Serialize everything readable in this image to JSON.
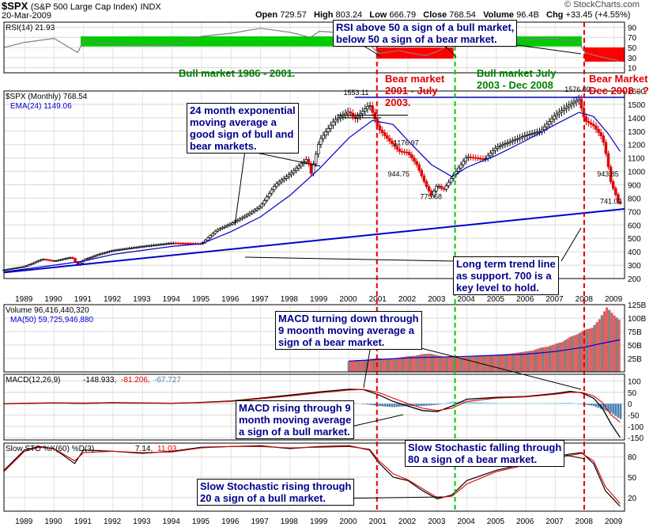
{
  "header": {
    "symbol": "$SPX",
    "name": "(S&P 500 Large Cap Index)",
    "exchange": "INDX",
    "date": "20-Mar-2009",
    "open_label": "Open",
    "open": "729.57",
    "high_label": "High",
    "high": "803.24",
    "low_label": "Low",
    "low": "666.79",
    "close_label": "Close",
    "close": "768.54",
    "volume_label": "Volume",
    "volume": "96.4B",
    "chg_label": "Chg",
    "chg": "+33.45 (+4.55%)",
    "watermark": "© StockCharts.com"
  },
  "annotations": {
    "rsi_note": "RSI above 50 a sign of a bull market,\nbelow 50 a sign of a bear market.",
    "bull_1986": "Bull market 1986 - 2001.",
    "bear_2001": "Bear market\n2001 - July\n2003.",
    "bull_2003": "Bull market July\n2003 - Dec 2008",
    "bear_2008": "Bear Market\nDec 2008 - ?",
    "ema_note": "24 month exponential\nmoving average a\ngood sign of bull and\nbear markets.",
    "trend_note": "Long term trend line\nas support. 700 is a\nkey level to hold.",
    "macd_down_note": "MACD turning down through\n9 moonth moving average a\nsign of a bear market.",
    "macd_up_note": "MACD rising through 9\nmonth moving average\na sign of a bull market.",
    "sto_down_note": "Slow Stochastic falling through\n80 a sign of a bear market.",
    "sto_up_note": "Slow Stochastic rising through\n20 a sign of a bull market."
  },
  "chart_data": [
    {
      "panel": "rsi",
      "type": "line",
      "legend": "RSI(14) 21.93",
      "ylim": [
        0,
        100
      ],
      "yticks": [
        "90",
        "70",
        "50",
        "30",
        "10"
      ],
      "ytick_values": [
        90,
        70,
        50,
        30,
        10
      ],
      "last_value": 21.93,
      "x": [
        1988.3,
        1989,
        1990,
        1990.8,
        1991,
        1992,
        1993,
        1994,
        1995,
        1996,
        1997,
        1998,
        1998.7,
        1999,
        2000,
        2000.6,
        2001,
        2001.7,
        2002,
        2002.6,
        2003,
        2003.6,
        2004,
        2005,
        2006,
        2007,
        2007.8,
        2008,
        2008.5,
        2009,
        2009.2
      ],
      "y": [
        50,
        60,
        68,
        40,
        63,
        58,
        55,
        56,
        72,
        78,
        88,
        80,
        70,
        82,
        78,
        64,
        38,
        44,
        40,
        34,
        42,
        62,
        66,
        62,
        65,
        68,
        60,
        40,
        32,
        26,
        22
      ],
      "color": "#808080",
      "fill_bull": "#00cc00",
      "fill_bear": "#ff0000"
    },
    {
      "panel": "price",
      "type": "candlestick",
      "legend": [
        "$SPX (Monthly) 768.54",
        "EMA(24) 1149.06"
      ],
      "ylim": [
        200,
        1600
      ],
      "yticks": [
        "1600",
        "1500",
        "1400",
        "1300",
        "1200",
        "1100",
        "1000",
        "900",
        "800",
        "700",
        "600",
        "500",
        "400",
        "300",
        "200"
      ],
      "ytick_values": [
        1600,
        1500,
        1400,
        1300,
        1200,
        1100,
        1000,
        900,
        800,
        700,
        600,
        500,
        400,
        300,
        200
      ],
      "x_tick_labels": [
        "1989",
        "1990",
        "1991",
        "1992",
        "1993",
        "1994",
        "1995",
        "1996",
        "1997",
        "1998",
        "1999",
        "2000",
        "2001",
        "2002",
        "2003",
        "2004",
        "2005",
        "2006",
        "2007",
        "2008",
        "2009"
      ],
      "x_tick_values": [
        1989,
        1990,
        1991,
        1992,
        1993,
        1994,
        1995,
        1996,
        1997,
        1998,
        1999,
        2000,
        2001,
        2002,
        2003,
        2004,
        2005,
        2006,
        2007,
        2008,
        2009
      ],
      "xlim": [
        1988.3,
        2009.35
      ],
      "price_x": [
        1988.3,
        1989,
        1989.6,
        1990,
        1990.6,
        1990.8,
        1991,
        1991.5,
        1992,
        1993,
        1994,
        1995,
        1995.5,
        1996,
        1996.5,
        1997,
        1997.5,
        1998,
        1998.6,
        1998.7,
        1999,
        1999.5,
        2000,
        2000.2,
        2000.7,
        2001,
        2001.7,
        2002,
        2002.3,
        2002.6,
        2002.8,
        2003,
        2003.2,
        2003.6,
        2004,
        2004.6,
        2005,
        2006,
        2006.5,
        2007,
        2007.5,
        2007.8,
        2008,
        2008.3,
        2008.6,
        2008.75,
        2008.9,
        2009,
        2009.15,
        2009.22
      ],
      "price_y": [
        265,
        290,
        345,
        330,
        360,
        300,
        340,
        380,
        410,
        440,
        465,
        460,
        560,
        610,
        670,
        740,
        900,
        980,
        1100,
        970,
        1230,
        1380,
        1450,
        1390,
        1500,
        1320,
        1150,
        1140,
        1050,
        900,
        820,
        900,
        860,
        990,
        1110,
        1090,
        1180,
        1270,
        1300,
        1420,
        1500,
        1540,
        1380,
        1340,
        1250,
        1100,
        900,
        860,
        760,
        768
      ],
      "ema_x": [
        1988.3,
        1990,
        1991,
        1992,
        1993,
        1994,
        1995,
        1996,
        1997,
        1998,
        1999,
        2000,
        2000.8,
        2001.5,
        2002,
        2002.8,
        2003.5,
        2004,
        2005,
        2006,
        2007,
        2007.8,
        2008.3,
        2008.8,
        2009.2
      ],
      "ema_y": [
        250,
        300,
        330,
        380,
        410,
        440,
        460,
        550,
        660,
        820,
        1020,
        1250,
        1380,
        1350,
        1230,
        1050,
        960,
        1030,
        1120,
        1230,
        1350,
        1440,
        1410,
        1280,
        1149
      ],
      "trend_line": {
        "x": [
          1988.3,
          2009.35
        ],
        "y": [
          245,
          720
        ]
      },
      "peak_line": {
        "x": [
          2000.2,
          2009.35
        ],
        "y": [
          1553,
          1553
        ]
      },
      "value_labels": [
        {
          "text": "1553.11",
          "x": 2000.3,
          "y": 1553.11
        },
        {
          "text": "1176.97",
          "x": 2002.0,
          "y": 1176.97
        },
        {
          "text": "944.75",
          "x": 2001.8,
          "y": 944.75
        },
        {
          "text": "775.68",
          "x": 2002.9,
          "y": 775.68
        },
        {
          "text": "1576.09",
          "x": 2007.8,
          "y": 1576.09
        },
        {
          "text": "943.85",
          "x": 2008.9,
          "y": 943.85
        },
        {
          "text": "741.02",
          "x": 2009.0,
          "y": 741.02
        }
      ],
      "vlines_bear": [
        2000.95,
        2007.98
      ],
      "vline_bull": 2003.6
    },
    {
      "panel": "volume",
      "type": "bar",
      "legend": [
        "Volume 96,416,440,320",
        "MA(50) 59,725,946,880"
      ],
      "ylim": [
        0,
        125
      ],
      "yticks": [
        "125B",
        "100B",
        "75B",
        "50B",
        "25B"
      ],
      "ytick_values": [
        125,
        100,
        75,
        50,
        25
      ],
      "x": [
        2000.0,
        2000.25,
        2000.5,
        2000.75,
        2001.0,
        2001.25,
        2001.5,
        2001.75,
        2002.0,
        2002.25,
        2002.5,
        2002.75,
        2003.0,
        2003.25,
        2003.5,
        2003.75,
        2004.0,
        2004.25,
        2004.5,
        2004.75,
        2005.0,
        2005.25,
        2005.5,
        2005.75,
        2006.0,
        2006.25,
        2006.5,
        2006.75,
        2007.0,
        2007.25,
        2007.5,
        2007.75,
        2008.0,
        2008.25,
        2008.5,
        2008.75,
        2009.0,
        2009.2
      ],
      "values": [
        20,
        22,
        21,
        24,
        26,
        23,
        25,
        27,
        29,
        30,
        33,
        34,
        31,
        28,
        30,
        27,
        28,
        29,
        30,
        31,
        32,
        33,
        34,
        36,
        38,
        40,
        45,
        47,
        52,
        56,
        65,
        70,
        78,
        82,
        98,
        120,
        105,
        96
      ],
      "ma_x": [
        2000.0,
        2002.0,
        2004.0,
        2006.0,
        2007.0,
        2008.0,
        2008.5,
        2009.2
      ],
      "ma_y": [
        20,
        26,
        29,
        33,
        38,
        46,
        52,
        59.7
      ]
    },
    {
      "panel": "macd",
      "type": "line",
      "legend": {
        "label": "MACD(12,26,9)",
        "macd": "-148.933",
        "signal": "-81.206",
        "hist": "-67.727"
      },
      "ylim": [
        -160,
        130
      ],
      "yticks": [
        "100",
        "50",
        "0",
        "-50",
        "-100",
        "-150"
      ],
      "ytick_values": [
        100,
        50,
        0,
        -50,
        -100,
        -150
      ],
      "x": [
        1988.3,
        1989,
        1990,
        1991,
        1992,
        1993,
        1994,
        1995,
        1996,
        1997,
        1998,
        1999,
        2000,
        2000.5,
        2001,
        2001.5,
        2002,
        2002.5,
        2003,
        2003.5,
        2004,
        2005,
        2006,
        2007,
        2007.5,
        2007.9,
        2008.3,
        2008.6,
        2008.9,
        2009.2
      ],
      "macd": [
        0,
        2,
        4,
        2,
        5,
        3,
        2,
        6,
        12,
        25,
        38,
        52,
        64,
        62,
        40,
        10,
        -10,
        -30,
        -35,
        -10,
        20,
        28,
        32,
        45,
        55,
        48,
        25,
        -20,
        -90,
        -148.9
      ],
      "signal": [
        0,
        1,
        3,
        3,
        4,
        3,
        2,
        5,
        10,
        22,
        34,
        48,
        60,
        63,
        50,
        25,
        0,
        -20,
        -30,
        -20,
        10,
        25,
        30,
        42,
        50,
        50,
        35,
        5,
        -50,
        -81.2
      ],
      "hist_color_pos": "#87ceeb",
      "hist_color_neg": "#4682b4"
    },
    {
      "panel": "stochastic",
      "type": "line",
      "legend": {
        "label": "Slow STO %K(60) %D(3)",
        "k": "7.14",
        "d": "11.03"
      },
      "ylim": [
        0,
        100
      ],
      "yticks": [
        "80",
        "50",
        "20"
      ],
      "ytick_values": [
        80,
        50,
        20
      ],
      "x": [
        1988.3,
        1989,
        1989.5,
        1990,
        1990.7,
        1991,
        1992,
        1993,
        1994,
        1995,
        1996,
        1997,
        1998,
        1999,
        2000,
        2000.7,
        2001,
        2001.5,
        2002,
        2002.5,
        2003,
        2003.5,
        2004,
        2005,
        2006,
        2007,
        2007.5,
        2007.9,
        2008.3,
        2008.7,
        2009.2
      ],
      "k": [
        60,
        90,
        95,
        92,
        70,
        90,
        88,
        85,
        88,
        94,
        95,
        96,
        92,
        95,
        96,
        90,
        72,
        50,
        45,
        30,
        18,
        24,
        45,
        60,
        70,
        80,
        84,
        86,
        70,
        30,
        7.14
      ],
      "d": [
        58,
        88,
        94,
        92,
        74,
        86,
        88,
        86,
        87,
        93,
        95,
        95,
        93,
        94,
        95,
        91,
        75,
        55,
        46,
        33,
        20,
        22,
        40,
        58,
        68,
        78,
        82,
        85,
        74,
        36,
        11.03
      ]
    }
  ]
}
